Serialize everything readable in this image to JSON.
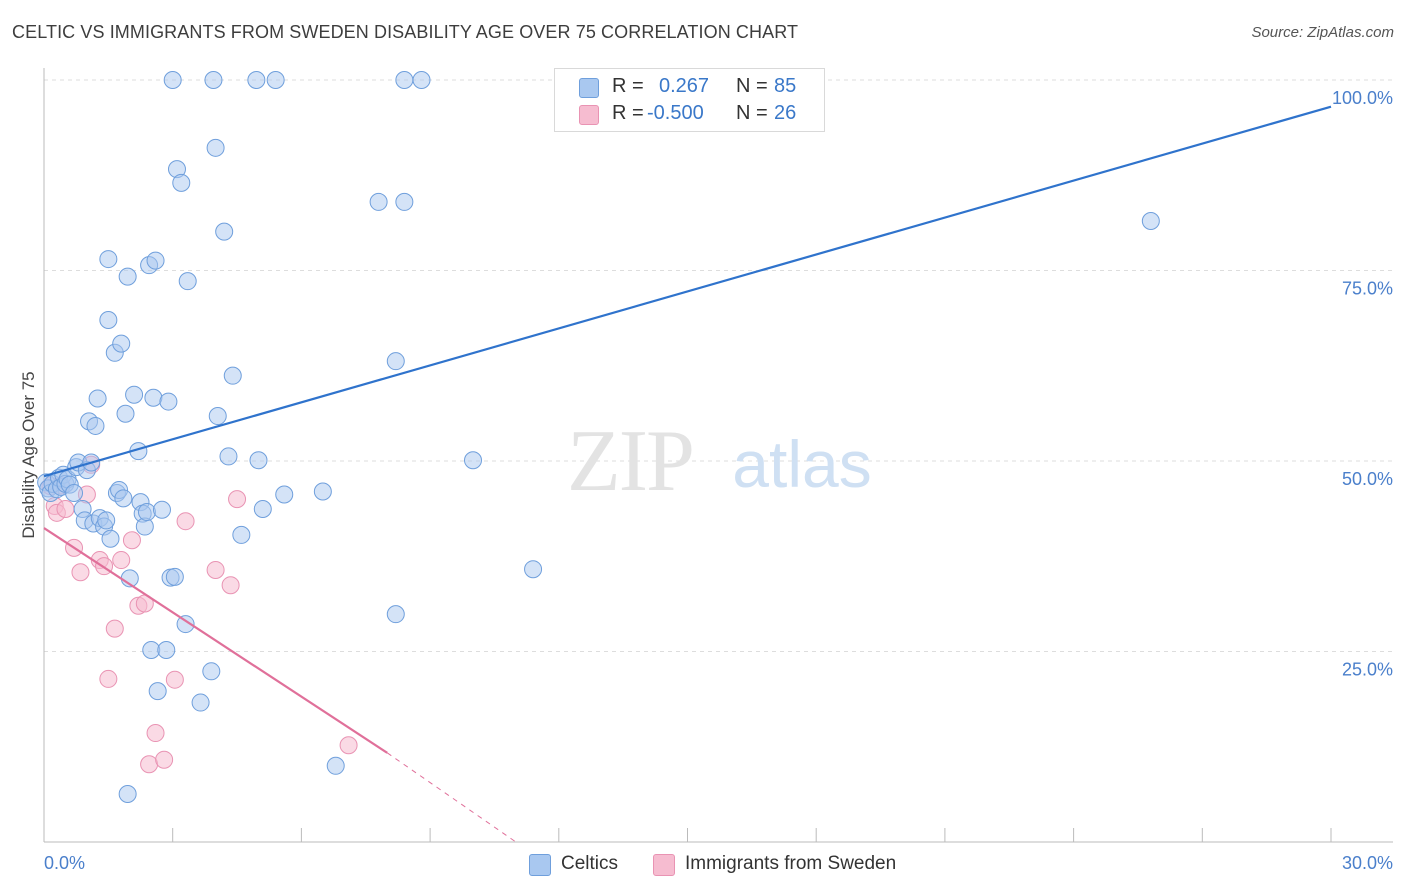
{
  "title": "CELTIC VS IMMIGRANTS FROM SWEDEN DISABILITY AGE OVER 75 CORRELATION CHART",
  "source": "Source: ZipAtlas.com",
  "watermark": {
    "zip": "ZIP",
    "atlas": "atlas"
  },
  "colors": {
    "blue_fill": "#a9c8f0",
    "blue_stroke": "#6f9fdc",
    "blue_line": "#2f73cc",
    "pink_fill": "#f6bcd0",
    "pink_stroke": "#e993b3",
    "pink_line": "#e0709a",
    "axis_text": "#4a7fcb",
    "grid": "#dddddd"
  },
  "legend": {
    "r_label": "R =",
    "n_label": "N =",
    "series": [
      {
        "r": "0.267",
        "n": "85"
      },
      {
        "r": "-0.500",
        "n": "26"
      }
    ]
  },
  "chart_data": {
    "type": "scatter",
    "title": "CELTIC VS IMMIGRANTS FROM SWEDEN DISABILITY AGE OVER 75 CORRELATION CHART",
    "xlabel": "",
    "ylabel": "Disability Age Over 75",
    "xlim": [
      0,
      30
    ],
    "ylim": [
      0,
      100
    ],
    "x_tick_labels": {
      "min": "0.0%",
      "max": "30.0%"
    },
    "y_tick_labels": [
      "25.0%",
      "50.0%",
      "75.0%",
      "100.0%"
    ],
    "y_ticks": [
      25,
      50,
      75,
      100
    ],
    "grid": true,
    "legend_position": "bottom-center",
    "series": [
      {
        "name": "Celtics",
        "color": "blue",
        "r": 0.267,
        "n": 85,
        "trend": {
          "x": [
            0,
            30
          ],
          "y": [
            48.0,
            96.5
          ],
          "dashed_from": null
        },
        "points": [
          [
            0.05,
            47.2
          ],
          [
            0.1,
            46.4
          ],
          [
            0.15,
            45.8
          ],
          [
            0.2,
            47.0
          ],
          [
            0.3,
            46.3
          ],
          [
            0.35,
            47.8
          ],
          [
            0.4,
            46.6
          ],
          [
            0.45,
            48.2
          ],
          [
            0.5,
            47.0
          ],
          [
            0.55,
            47.6
          ],
          [
            0.6,
            46.9
          ],
          [
            0.7,
            45.8
          ],
          [
            0.75,
            49.2
          ],
          [
            0.8,
            49.8
          ],
          [
            0.9,
            43.7
          ],
          [
            1.0,
            48.8
          ],
          [
            1.1,
            49.8
          ],
          [
            0.95,
            42.2
          ],
          [
            1.05,
            55.2
          ],
          [
            1.15,
            41.8
          ],
          [
            1.2,
            54.6
          ],
          [
            1.25,
            58.2
          ],
          [
            1.3,
            42.5
          ],
          [
            1.4,
            41.4
          ],
          [
            1.45,
            42.2
          ],
          [
            1.5,
            68.5
          ],
          [
            1.5,
            76.5
          ],
          [
            1.55,
            39.8
          ],
          [
            1.65,
            64.2
          ],
          [
            1.7,
            45.8
          ],
          [
            1.75,
            46.2
          ],
          [
            1.8,
            65.4
          ],
          [
            1.85,
            45.1
          ],
          [
            1.9,
            56.2
          ],
          [
            1.95,
            74.2
          ],
          [
            2.0,
            34.6
          ],
          [
            2.1,
            58.7
          ],
          [
            2.2,
            51.3
          ],
          [
            2.25,
            44.6
          ],
          [
            2.3,
            43.1
          ],
          [
            2.35,
            41.4
          ],
          [
            2.4,
            43.3
          ],
          [
            2.45,
            75.7
          ],
          [
            2.5,
            25.2
          ],
          [
            2.55,
            58.3
          ],
          [
            2.6,
            76.3
          ],
          [
            2.65,
            19.8
          ],
          [
            2.75,
            43.6
          ],
          [
            2.85,
            25.2
          ],
          [
            2.9,
            57.8
          ],
          [
            2.95,
            34.7
          ],
          [
            3.0,
            100.0
          ],
          [
            3.05,
            34.8
          ],
          [
            3.1,
            88.3
          ],
          [
            3.2,
            86.5
          ],
          [
            3.3,
            28.6
          ],
          [
            3.35,
            73.6
          ],
          [
            3.65,
            18.3
          ],
          [
            3.9,
            22.4
          ],
          [
            3.95,
            100.0
          ],
          [
            4.0,
            91.1
          ],
          [
            4.05,
            55.9
          ],
          [
            4.2,
            80.1
          ],
          [
            4.3,
            50.6
          ],
          [
            4.4,
            61.2
          ],
          [
            4.6,
            40.3
          ],
          [
            4.95,
            100.0
          ],
          [
            5.0,
            50.1
          ],
          [
            5.1,
            43.7
          ],
          [
            5.4,
            100.0
          ],
          [
            5.6,
            45.6
          ],
          [
            6.5,
            46.0
          ],
          [
            6.8,
            10.0
          ],
          [
            7.8,
            84.0
          ],
          [
            8.2,
            63.1
          ],
          [
            8.2,
            29.9
          ],
          [
            8.4,
            100.0
          ],
          [
            8.4,
            84.0
          ],
          [
            8.8,
            100.0
          ],
          [
            10.0,
            50.1
          ],
          [
            11.4,
            35.8
          ],
          [
            25.8,
            81.5
          ],
          [
            1.95,
            6.3
          ]
        ]
      },
      {
        "name": "Immigrants from Sweden",
        "color": "pink",
        "r": -0.5,
        "n": 26,
        "trend": {
          "x": [
            0,
            8.0
          ],
          "y": [
            41.2,
            11.7
          ],
          "dashed_to": [
            11.0,
            0.0
          ]
        },
        "points": [
          [
            0.15,
            46.7
          ],
          [
            0.25,
            44.1
          ],
          [
            0.3,
            43.2
          ],
          [
            0.4,
            46.8
          ],
          [
            0.5,
            43.7
          ],
          [
            0.7,
            38.6
          ],
          [
            0.85,
            35.4
          ],
          [
            1.0,
            45.6
          ],
          [
            1.1,
            49.5
          ],
          [
            1.3,
            37.0
          ],
          [
            1.4,
            36.2
          ],
          [
            1.5,
            21.4
          ],
          [
            1.65,
            28.0
          ],
          [
            1.8,
            37.0
          ],
          [
            2.05,
            39.6
          ],
          [
            2.2,
            31.0
          ],
          [
            2.35,
            31.3
          ],
          [
            2.45,
            10.2
          ],
          [
            2.6,
            14.3
          ],
          [
            2.8,
            10.8
          ],
          [
            3.05,
            21.3
          ],
          [
            3.3,
            42.1
          ],
          [
            4.0,
            35.7
          ],
          [
            4.35,
            33.7
          ],
          [
            4.5,
            45.0
          ],
          [
            7.1,
            12.7
          ]
        ]
      }
    ]
  }
}
